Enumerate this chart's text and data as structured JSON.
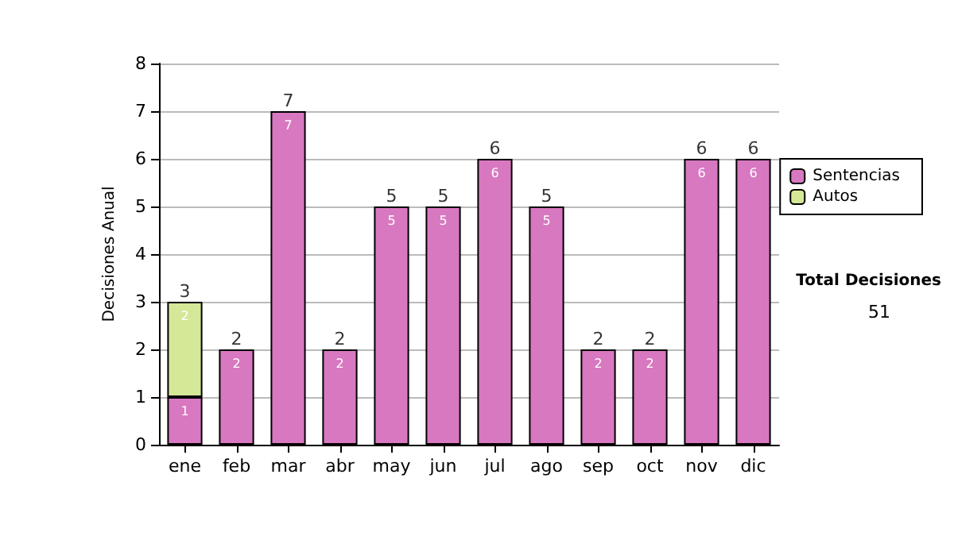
{
  "chart_data": {
    "type": "bar",
    "ylabel": "Decisiones Anual",
    "categories": [
      "ene",
      "feb",
      "mar",
      "abr",
      "may",
      "jun",
      "jul",
      "ago",
      "sep",
      "oct",
      "nov",
      "dic"
    ],
    "series": [
      {
        "name": "Sentencias",
        "color": "#d878c0",
        "values": [
          1,
          2,
          7,
          2,
          5,
          5,
          6,
          5,
          2,
          2,
          6,
          6
        ]
      },
      {
        "name": "Autos",
        "color": "#d4e898",
        "values": [
          2,
          null,
          null,
          null,
          null,
          null,
          null,
          null,
          null,
          null,
          null,
          null
        ]
      }
    ],
    "stacked": true,
    "data_labels": true,
    "totals": [
      "3",
      "2",
      "7",
      "2",
      "5",
      "5",
      "6",
      "5",
      "2",
      "2",
      "6",
      "6"
    ],
    "ylim": [
      0,
      8
    ],
    "yticks": [
      0,
      1,
      2,
      3,
      4,
      5,
      6,
      7,
      8
    ],
    "grid": "y",
    "legend": "right",
    "annotations": [
      "Total Decisiones",
      "51"
    ]
  }
}
